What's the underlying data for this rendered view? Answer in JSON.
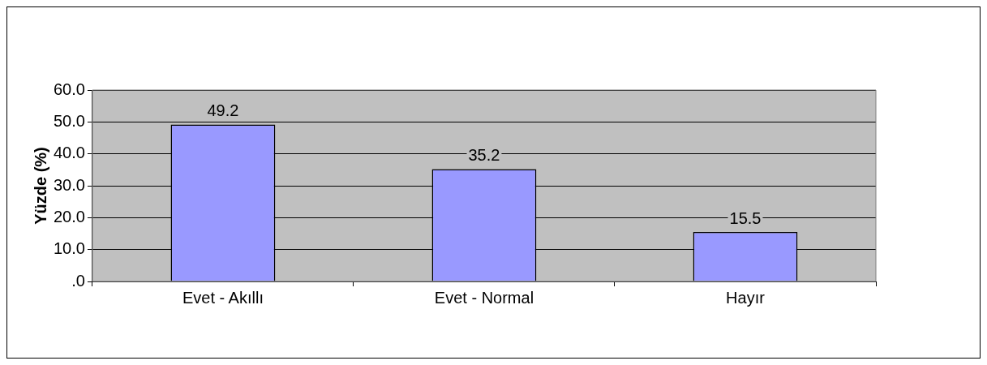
{
  "chart_data": {
    "type": "bar",
    "ylabel": "Yüzde (%)",
    "categories": [
      "Evet - Akıllı",
      "Evet - Normal",
      "Hayır"
    ],
    "values": [
      49.2,
      35.2,
      15.5
    ],
    "color": "#9999ff",
    "ylim": [
      0,
      60
    ],
    "yticks": [
      {
        "value": 0,
        "label": ".0"
      },
      {
        "value": 10,
        "label": "10.0"
      },
      {
        "value": 20,
        "label": "20.0"
      },
      {
        "value": 30,
        "label": "30.0"
      },
      {
        "value": 40,
        "label": "40.0"
      },
      {
        "value": 50,
        "label": "50.0"
      },
      {
        "value": 60,
        "label": "60.0"
      }
    ],
    "grid": "y",
    "data_labels": true,
    "legend": false
  }
}
